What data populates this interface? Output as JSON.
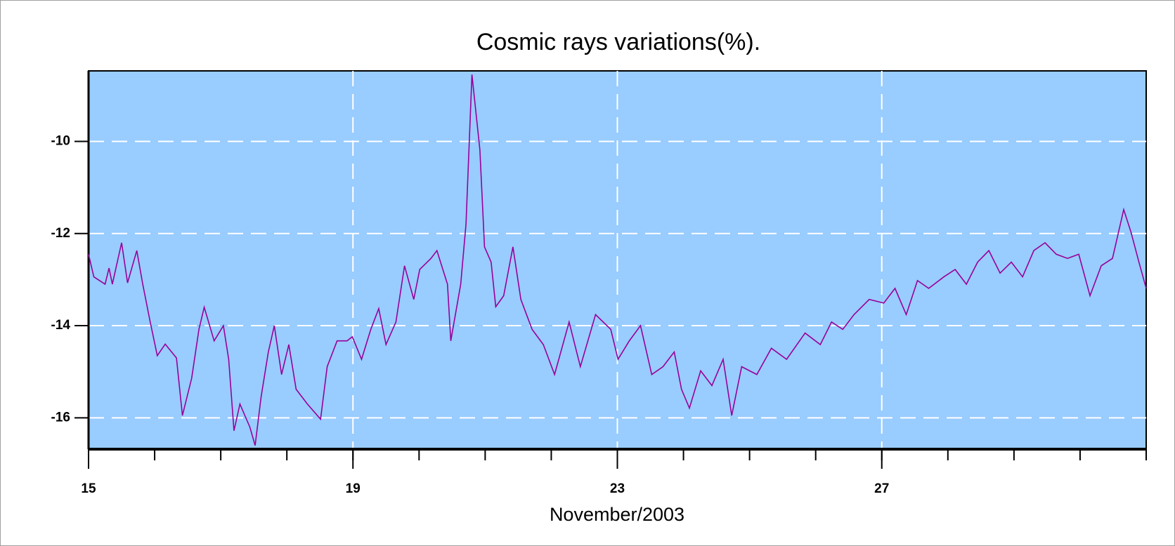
{
  "chart_data": {
    "type": "line",
    "title": "Cosmic rays variations(%).",
    "x_label": "November/2003",
    "x": [
      15.0,
      15.08,
      15.25,
      15.31,
      15.36,
      15.5,
      15.59,
      15.73,
      15.82,
      15.93,
      16.04,
      16.16,
      16.33,
      16.42,
      16.56,
      16.67,
      16.75,
      16.9,
      17.04,
      17.12,
      17.2,
      17.29,
      17.44,
      17.52,
      17.61,
      17.72,
      17.81,
      17.92,
      18.03,
      18.14,
      18.31,
      18.51,
      18.61,
      18.76,
      18.91,
      18.99,
      19.13,
      19.27,
      19.39,
      19.5,
      19.65,
      19.78,
      19.92,
      20.01,
      20.18,
      20.27,
      20.43,
      20.48,
      20.63,
      20.71,
      20.8,
      20.92,
      20.99,
      21.09,
      21.16,
      21.28,
      21.42,
      21.54,
      21.71,
      21.88,
      22.05,
      22.27,
      22.44,
      22.67,
      22.9,
      23.01,
      23.18,
      23.35,
      23.52,
      23.69,
      23.86,
      23.97,
      24.09,
      24.26,
      24.43,
      24.6,
      24.73,
      24.88,
      25.11,
      25.33,
      25.56,
      25.84,
      26.07,
      26.24,
      26.41,
      26.58,
      26.81,
      27.03,
      27.2,
      27.37,
      27.54,
      27.71,
      27.94,
      28.11,
      28.28,
      28.45,
      28.62,
      28.79,
      28.96,
      29.13,
      29.3,
      29.47,
      29.64,
      29.81,
      29.98,
      30.15,
      30.32,
      30.49,
      30.66,
      30.77,
      30.89,
      31.0
    ],
    "values": [
      -12.45,
      -12.94,
      -13.1,
      -12.75,
      -13.1,
      -12.2,
      -13.07,
      -12.37,
      -13.1,
      -13.9,
      -14.65,
      -14.4,
      -14.7,
      -15.95,
      -15.14,
      -14.08,
      -13.6,
      -14.33,
      -14.0,
      -14.73,
      -16.28,
      -15.7,
      -16.2,
      -16.6,
      -15.55,
      -14.57,
      -14.0,
      -15.06,
      -14.41,
      -15.38,
      -15.7,
      -16.03,
      -14.89,
      -14.33,
      -14.33,
      -14.24,
      -14.73,
      -14.08,
      -13.63,
      -14.41,
      -13.92,
      -12.7,
      -13.43,
      -12.78,
      -12.54,
      -12.37,
      -13.1,
      -14.33,
      -13.1,
      -11.8,
      -8.55,
      -10.18,
      -12.29,
      -12.62,
      -13.59,
      -13.35,
      -12.29,
      -13.43,
      -14.08,
      -14.41,
      -15.06,
      -13.92,
      -14.89,
      -13.76,
      -14.08,
      -14.73,
      -14.33,
      -14.0,
      -15.06,
      -14.89,
      -14.57,
      -15.38,
      -15.79,
      -14.98,
      -15.3,
      -14.73,
      -15.95,
      -14.89,
      -15.06,
      -14.49,
      -14.73,
      -14.16,
      -14.41,
      -13.92,
      -14.08,
      -13.76,
      -13.43,
      -13.51,
      -13.19,
      -13.76,
      -13.02,
      -13.19,
      -12.94,
      -12.78,
      -13.1,
      -12.62,
      -12.37,
      -12.86,
      -12.62,
      -12.94,
      -12.37,
      -12.2,
      -12.45,
      -12.54,
      -12.45,
      -13.35,
      -12.7,
      -12.54,
      -11.48,
      -11.97,
      -12.62,
      -13.19
    ],
    "color": "#990099",
    "background": "#99ccff",
    "xlim": [
      15,
      31
    ],
    "xticks": [
      15,
      19,
      23,
      27
    ],
    "ylim": [
      -16.68,
      -8.47
    ],
    "yticks": [
      -10,
      -12,
      -14,
      -16
    ],
    "grid": true
  }
}
